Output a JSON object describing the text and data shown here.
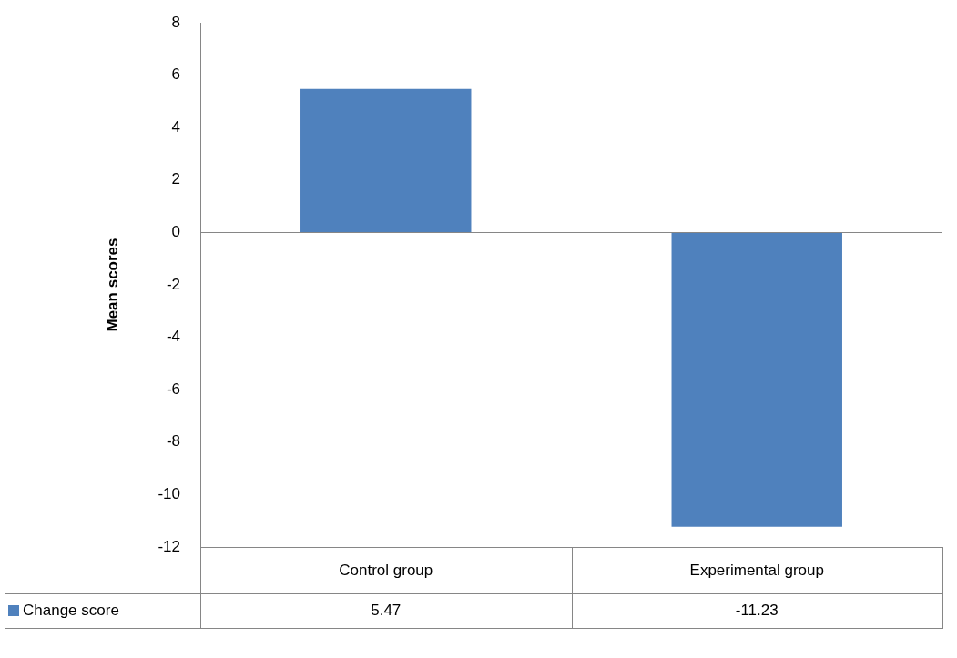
{
  "chart_data": {
    "type": "bar",
    "ylabel": "Mean scores",
    "categories": [
      "Control group",
      "Experimental group"
    ],
    "series": [
      {
        "name": "Change score",
        "color": "#4f81bd",
        "values": [
          5.47,
          -11.23
        ]
      }
    ],
    "ylim": [
      -12,
      8
    ],
    "yticks": [
      -12,
      -10,
      -8,
      -6,
      -4,
      -2,
      0,
      2,
      4,
      6,
      8
    ],
    "ref_lines": [
      {
        "axis": "y",
        "value": 0
      }
    ],
    "grid": false,
    "legend": "bottom left",
    "data_labels": true
  }
}
